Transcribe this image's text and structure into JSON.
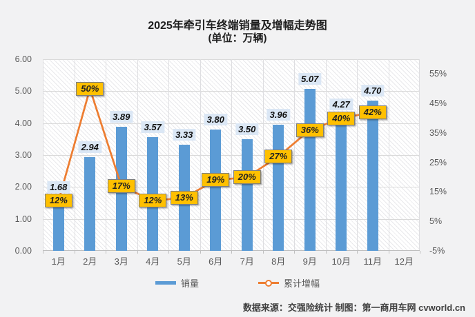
{
  "title": "2025年牵引车终端销量及增幅走势图",
  "subtitle": "(单位：万辆)",
  "footer": "数据来源：交强险统计  制图：第一商用车网 cvworld.cn",
  "legend": {
    "items": [
      {
        "label": "销量",
        "marker": "bar-swatch"
      },
      {
        "label": "累计增幅",
        "marker": "line-marker-swatch"
      }
    ]
  },
  "colors": {
    "bar": "#5b9bd5",
    "line": "#ed7d31",
    "value_label_bg": "#dbe7f5",
    "pct_label_bg": "#ffc000",
    "pct_label_border": "#7f7f7f",
    "axis_text": "#595959",
    "grid": "#d9d9d9"
  },
  "chart_data": {
    "type": "bar",
    "subtype": "bar+line combo",
    "title": "2025年牵引车终端销量及增幅走势图",
    "subtitle": "(单位：万辆)",
    "categories": [
      "1月",
      "2月",
      "3月",
      "4月",
      "5月",
      "6月",
      "7月",
      "8月",
      "9月",
      "10月",
      "11月",
      "12月"
    ],
    "series": [
      {
        "name": "销量",
        "type": "bar",
        "axis": "left",
        "values": [
          1.68,
          2.94,
          3.89,
          3.57,
          3.33,
          3.8,
          3.5,
          3.96,
          5.07,
          4.27,
          4.7,
          null
        ],
        "data_labels": [
          "1.68",
          "2.94",
          "3.89",
          "3.57",
          "3.33",
          "3.80",
          "3.50",
          "3.96",
          "5.07",
          "4.27",
          "4.70"
        ]
      },
      {
        "name": "累计增幅",
        "type": "line",
        "axis": "right",
        "values": [
          12,
          50,
          17,
          12,
          13,
          19,
          20,
          27,
          36,
          40,
          42,
          null
        ],
        "data_labels": [
          "12%",
          "50%",
          "17%",
          "12%",
          "13%",
          "19%",
          "20%",
          "27%",
          "36%",
          "40%",
          "42%"
        ]
      }
    ],
    "left_axis": {
      "min": 0,
      "max": 6,
      "major": 1,
      "tick_labels": [
        "0.00",
        "1.00",
        "2.00",
        "3.00",
        "4.00",
        "5.00",
        "6.00"
      ]
    },
    "right_axis": {
      "min": -5,
      "max": 60,
      "major": 10,
      "tick_labels": [
        "-5%",
        "5%",
        "15%",
        "25%",
        "35%",
        "45%",
        "55%"
      ]
    },
    "grid": true,
    "legend_position": "bottom"
  }
}
